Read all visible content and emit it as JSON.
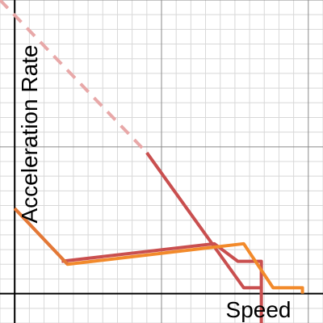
{
  "chart_data": {
    "type": "line",
    "xlabel": "Speed",
    "ylabel": "Acceleration Rate",
    "grid": true,
    "xlim": [
      -0.5,
      10.5
    ],
    "ylim": [
      -1,
      10
    ],
    "minor_grid_step": 0.5,
    "major_grid_step": 5,
    "series": [
      {
        "color": "#c94f4f",
        "style": "solid",
        "opacity": 1,
        "x": [
          4.5,
          7.8,
          8.4,
          8.4
        ],
        "y": [
          4.8,
          0.2,
          0.2,
          -1
        ]
      },
      {
        "color": "#e8a8a8",
        "style": "dashed",
        "opacity": 1,
        "x": [
          -0.5,
          4.5
        ],
        "y": [
          10,
          4.8
        ]
      },
      {
        "color": "#c94f4f",
        "style": "solid",
        "opacity": 1,
        "x": [
          1.6,
          6.8,
          7.6,
          8.4,
          8.4
        ],
        "y": [
          1.1,
          1.7,
          1.1,
          1.1,
          0.2
        ]
      },
      {
        "color": "#f28a2b",
        "style": "solid",
        "opacity": 1,
        "x": [
          0,
          1.8,
          7.8,
          8.8,
          9.8,
          9.8
        ],
        "y": [
          2.9,
          1.0,
          1.7,
          0.2,
          0.2,
          0
        ]
      },
      {
        "color": "#e0743a",
        "style": "solid",
        "opacity": 0.85,
        "x": [
          0,
          1.8
        ],
        "y": [
          2.9,
          1.0
        ]
      }
    ]
  }
}
